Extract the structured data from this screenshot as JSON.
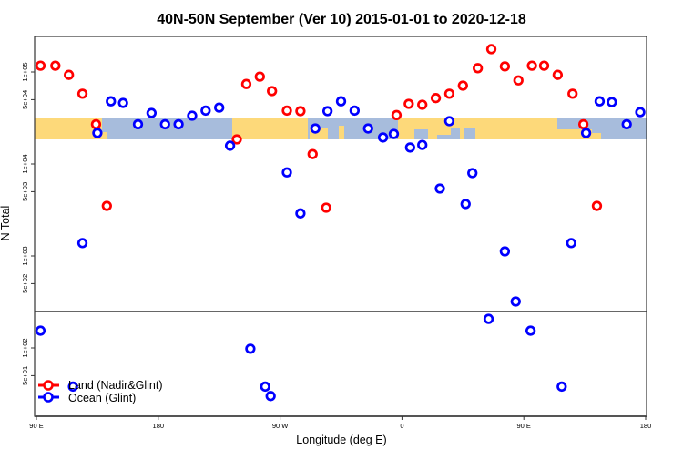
{
  "chart_data": {
    "type": "scatter",
    "title": "40N-50N September (Ver 10)   2015-01-01 to 2020-12-18",
    "xlabel": "Longitude (deg E)",
    "ylabel": "N Total",
    "y_scale": "log",
    "ylim": [
      18,
      243000
    ],
    "panel_divider_value": 250,
    "xlim_note_ticks": [
      "90 E",
      "180",
      "90 W",
      "0",
      "90 E",
      "180"
    ],
    "x_ticks": [
      {
        "label": "90 E",
        "lon": 90,
        "cycle": 1
      },
      {
        "label": "180",
        "lon": 180,
        "cycle": 1
      },
      {
        "label": "90 W",
        "lon": -90,
        "cycle": 1
      },
      {
        "label": "0",
        "lon": 0,
        "cycle": 1
      },
      {
        "label": "90 E",
        "lon": 90,
        "cycle": 2
      },
      {
        "label": "180",
        "lon": 180,
        "cycle": 2
      }
    ],
    "y_ticks": [
      {
        "label": "1e+05",
        "value": 100000
      },
      {
        "label": "5e+04",
        "value": 50000
      },
      {
        "label": "1e+04",
        "value": 10000
      },
      {
        "label": "5e+03",
        "value": 5000
      },
      {
        "label": "1e+03",
        "value": 1000
      },
      {
        "label": "5e+02",
        "value": 500
      },
      {
        "label": "1e+02",
        "value": 100
      },
      {
        "label": "5e+01",
        "value": 50
      }
    ],
    "grid": false,
    "legend_position": "bottom-left",
    "map_strip": {
      "land_color": "#FDD97A",
      "ocean_color": "#A7BCDC"
    },
    "series": [
      {
        "name": "Land (Nadir&Glint)",
        "color": "#FF0000",
        "points": [
          {
            "lon": 93,
            "cycle": 1,
            "n": 117000
          },
          {
            "lon": 104,
            "cycle": 1,
            "n": 117000
          },
          {
            "lon": 114,
            "cycle": 1,
            "n": 93000
          },
          {
            "lon": 124,
            "cycle": 1,
            "n": 58000
          },
          {
            "lon": 134,
            "cycle": 1,
            "n": 27000
          },
          {
            "lon": 142,
            "cycle": 1,
            "n": 3500
          },
          {
            "lon": -122,
            "cycle": 1,
            "n": 18500
          },
          {
            "lon": -115,
            "cycle": 1,
            "n": 74000
          },
          {
            "lon": -105,
            "cycle": 1,
            "n": 89000
          },
          {
            "lon": -96,
            "cycle": 1,
            "n": 62000
          },
          {
            "lon": -85,
            "cycle": 1,
            "n": 38000
          },
          {
            "lon": -75,
            "cycle": 1,
            "n": 37500
          },
          {
            "lon": -66,
            "cycle": 1,
            "n": 12800
          },
          {
            "lon": -56,
            "cycle": 1,
            "n": 3350
          },
          {
            "lon": -4,
            "cycle": 1,
            "n": 34000
          },
          {
            "lon": 5,
            "cycle": 1,
            "n": 45000
          },
          {
            "lon": 15,
            "cycle": 1,
            "n": 44000
          },
          {
            "lon": 25,
            "cycle": 1,
            "n": 52000
          },
          {
            "lon": 35,
            "cycle": 1,
            "n": 58000
          },
          {
            "lon": 45,
            "cycle": 1,
            "n": 71000
          },
          {
            "lon": 56,
            "cycle": 1,
            "n": 110000
          },
          {
            "lon": 66,
            "cycle": 1,
            "n": 177000
          },
          {
            "lon": 76,
            "cycle": 1,
            "n": 115000
          },
          {
            "lon": 86,
            "cycle": 1,
            "n": 81000
          },
          {
            "lon": 96,
            "cycle": 2,
            "n": 117000
          },
          {
            "lon": 105,
            "cycle": 2,
            "n": 117000
          },
          {
            "lon": 115,
            "cycle": 2,
            "n": 93000
          },
          {
            "lon": 126,
            "cycle": 2,
            "n": 58000
          },
          {
            "lon": 134,
            "cycle": 2,
            "n": 27000
          },
          {
            "lon": 144,
            "cycle": 2,
            "n": 3500
          }
        ]
      },
      {
        "name": "Ocean (Glint)",
        "color": "#0000FF",
        "points": [
          {
            "lon": 93,
            "cycle": 1,
            "n": 154
          },
          {
            "lon": 117,
            "cycle": 1,
            "n": 38
          },
          {
            "lon": 124,
            "cycle": 1,
            "n": 1380
          },
          {
            "lon": 135,
            "cycle": 1,
            "n": 21700
          },
          {
            "lon": 145,
            "cycle": 1,
            "n": 48000
          },
          {
            "lon": 154,
            "cycle": 1,
            "n": 46000
          },
          {
            "lon": 165,
            "cycle": 1,
            "n": 27000
          },
          {
            "lon": 175,
            "cycle": 1,
            "n": 35800
          },
          {
            "lon": -175,
            "cycle": 1,
            "n": 27000
          },
          {
            "lon": -165,
            "cycle": 1,
            "n": 27000
          },
          {
            "lon": -155,
            "cycle": 1,
            "n": 33500
          },
          {
            "lon": -145,
            "cycle": 1,
            "n": 38000
          },
          {
            "lon": -135,
            "cycle": 1,
            "n": 41000
          },
          {
            "lon": -127,
            "cycle": 1,
            "n": 15800
          },
          {
            "lon": -112,
            "cycle": 1,
            "n": 98
          },
          {
            "lon": -101,
            "cycle": 1,
            "n": 38
          },
          {
            "lon": -97,
            "cycle": 1,
            "n": 30
          },
          {
            "lon": -85,
            "cycle": 1,
            "n": 8100
          },
          {
            "lon": -75,
            "cycle": 1,
            "n": 2900
          },
          {
            "lon": -64,
            "cycle": 1,
            "n": 24300
          },
          {
            "lon": -55,
            "cycle": 1,
            "n": 37500
          },
          {
            "lon": -45,
            "cycle": 1,
            "n": 48000
          },
          {
            "lon": -35,
            "cycle": 1,
            "n": 38000
          },
          {
            "lon": -25,
            "cycle": 1,
            "n": 24300
          },
          {
            "lon": -14,
            "cycle": 1,
            "n": 19400
          },
          {
            "lon": -6,
            "cycle": 1,
            "n": 21200
          },
          {
            "lon": 6,
            "cycle": 1,
            "n": 15100
          },
          {
            "lon": 15,
            "cycle": 1,
            "n": 16100
          },
          {
            "lon": 28,
            "cycle": 1,
            "n": 5400
          },
          {
            "lon": 35,
            "cycle": 1,
            "n": 29200
          },
          {
            "lon": 47,
            "cycle": 1,
            "n": 3670
          },
          {
            "lon": 52,
            "cycle": 1,
            "n": 7960
          },
          {
            "lon": 64,
            "cycle": 1,
            "n": 207
          },
          {
            "lon": 76,
            "cycle": 1,
            "n": 1120
          },
          {
            "lon": 84,
            "cycle": 1,
            "n": 320
          },
          {
            "lon": 95,
            "cycle": 2,
            "n": 154
          },
          {
            "lon": 118,
            "cycle": 2,
            "n": 38
          },
          {
            "lon": 125,
            "cycle": 2,
            "n": 1380
          },
          {
            "lon": 136,
            "cycle": 2,
            "n": 21700
          },
          {
            "lon": 146,
            "cycle": 2,
            "n": 48000
          },
          {
            "lon": 155,
            "cycle": 2,
            "n": 47000
          },
          {
            "lon": 166,
            "cycle": 2,
            "n": 27000
          },
          {
            "lon": 176,
            "cycle": 2,
            "n": 36600
          }
        ]
      }
    ]
  }
}
